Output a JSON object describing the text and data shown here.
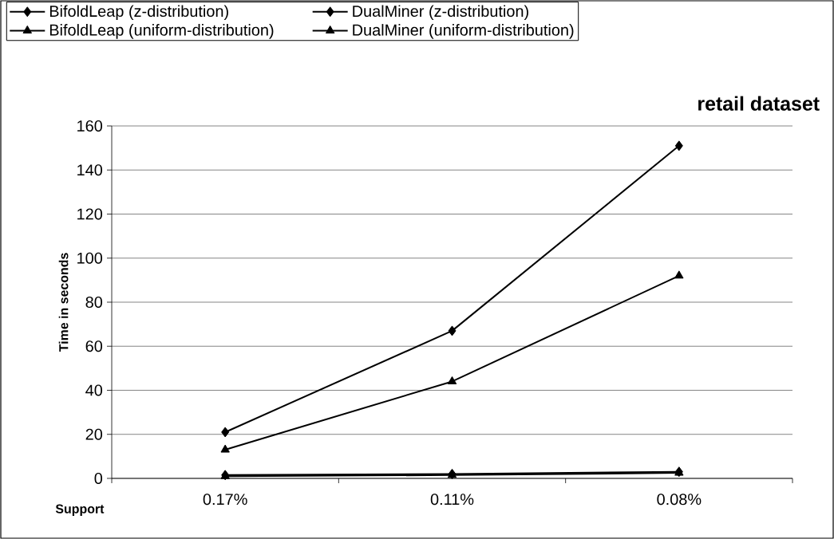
{
  "chart_data": {
    "type": "line",
    "title": "retail dataset",
    "xlabel": "Support",
    "ylabel": "Time in seconds",
    "categories": [
      "0.17%",
      "0.11%",
      "0.08%"
    ],
    "series": [
      {
        "name": "BifoldLeap (z-distribution)",
        "color": "#000000",
        "marker": "diamond",
        "values": [
          1.5,
          2,
          3
        ]
      },
      {
        "name": "DualMiner (z-distribution)",
        "color": "#000000",
        "marker": "diamond",
        "values": [
          21,
          67,
          151
        ]
      },
      {
        "name": "BifoldLeap (uniform-distribution)",
        "color": "#000000",
        "marker": "triangle",
        "values": [
          1,
          1.5,
          2.5
        ]
      },
      {
        "name": "DualMiner (uniform-distribution)",
        "color": "#000000",
        "marker": "triangle",
        "values": [
          13,
          44,
          92
        ]
      }
    ],
    "ylim": [
      0,
      160
    ],
    "yticks": [
      0,
      20,
      40,
      60,
      80,
      100,
      120,
      140,
      160
    ],
    "grid": "y",
    "legend": "top left",
    "line_style": "solid"
  }
}
